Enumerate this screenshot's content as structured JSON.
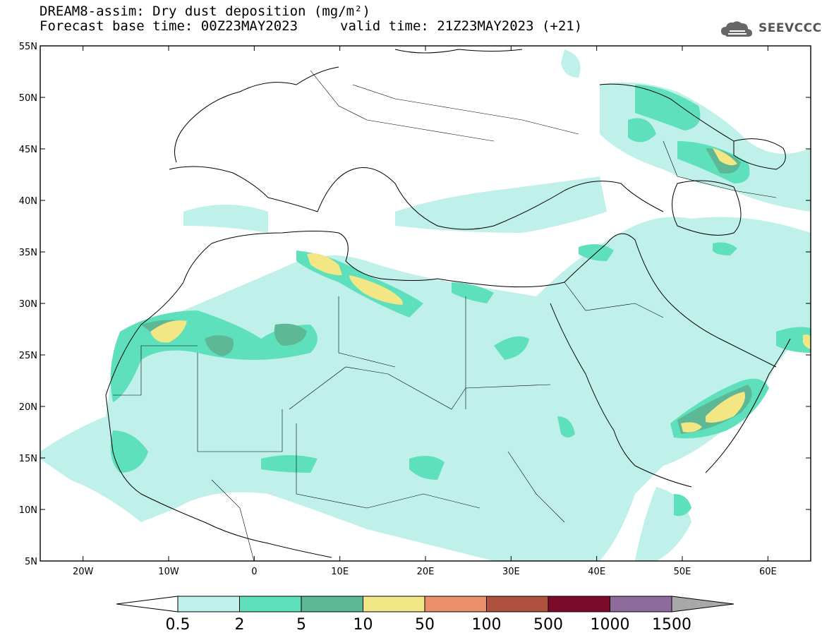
{
  "header": {
    "line1": "DREAM8-assim: Dry dust deposition (mg/m²)",
    "line2_left": "Forecast base time: 00Z23MAY2023",
    "line2_right": "valid time: 21Z23MAY2023 (+21)",
    "logo_text": "SEEVCCC",
    "logo_icon": "cloud-logo-icon"
  },
  "map": {
    "lat_labels": [
      "55N",
      "50N",
      "45N",
      "40N",
      "35N",
      "30N",
      "25N",
      "20N",
      "15N",
      "10N",
      "5N"
    ],
    "lon_labels": [
      "20W",
      "10W",
      "0",
      "10E",
      "20E",
      "30E",
      "40E",
      "50E",
      "60E"
    ],
    "lat_range": [
      5,
      55
    ],
    "lon_range": [
      -25,
      65
    ]
  },
  "colorbar": {
    "labels": [
      "0.5",
      "2",
      "5",
      "10",
      "50",
      "100",
      "500",
      "1000",
      "1500"
    ],
    "colors": [
      "#bff0ea",
      "#5ee0bd",
      "#5db895",
      "#f3e685",
      "#ea8f69",
      "#b0513f",
      "#7e0a2a",
      "#8f6b9c"
    ],
    "under_color": "#ffffff",
    "over_color": "#a8a8a8"
  },
  "palette": {
    "level1": "#bff0ea",
    "level2": "#5ee0bd",
    "level3": "#5db895",
    "level4": "#f3e685"
  }
}
